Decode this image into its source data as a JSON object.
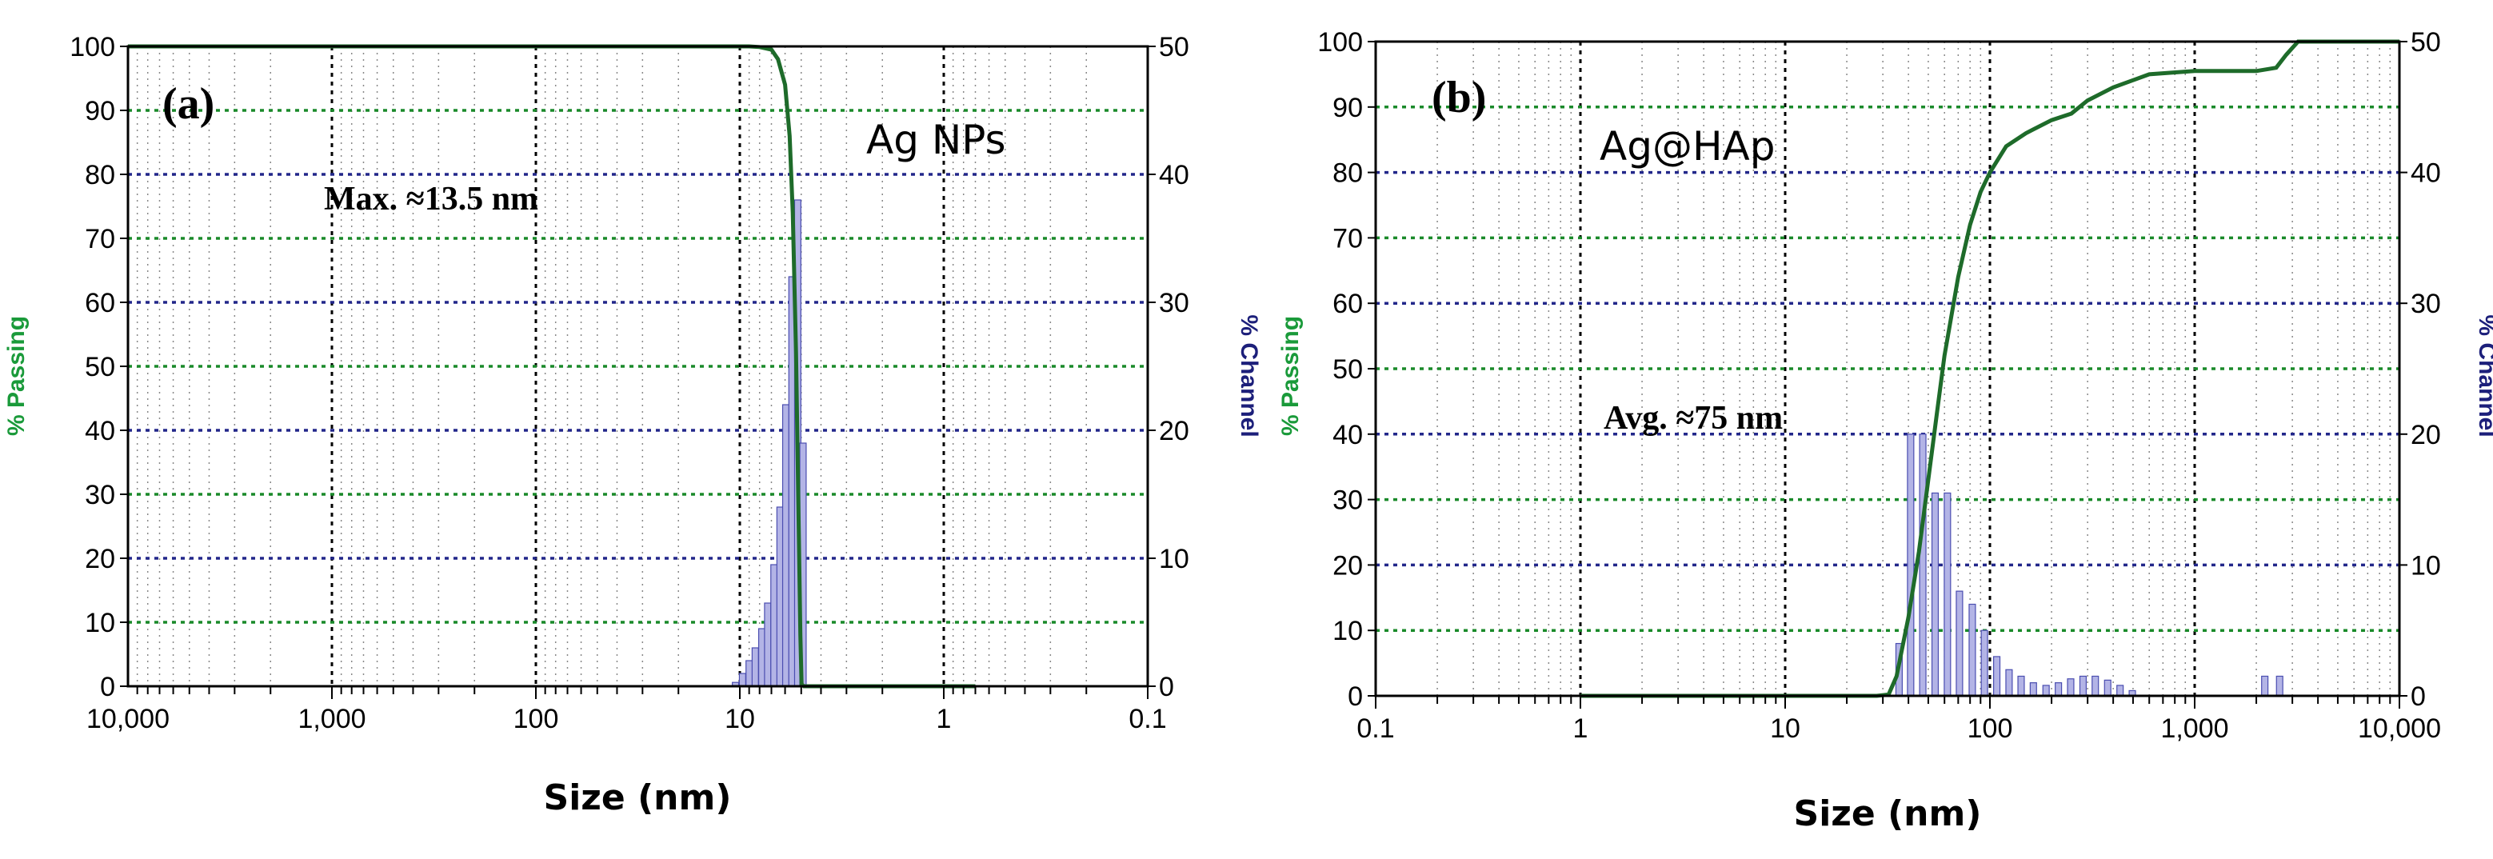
{
  "colors": {
    "passing": "#1a9a3a",
    "passing_line": "#1e6b2a",
    "channel": "#1c1f7a",
    "bars_fill": "#b3b4e6",
    "bars_stroke": "#4a4db0",
    "grid_black": "#000000",
    "grid_green": "#1a8a2a",
    "grid_blue": "#22278a"
  },
  "chart_data": [
    {
      "type": "bar",
      "panel_label": "(a)",
      "sample_label": "Ag NPs",
      "annotation": "Max. ≈13.5 nm",
      "xlabel": "Size (nm)",
      "ylabel_left": "% Passing",
      "ylabel_right": "% Channel",
      "x_scale": "log",
      "x_reversed": true,
      "xlim": [
        10000,
        0.1
      ],
      "x_tick_values": [
        10000,
        1000,
        100,
        10,
        1,
        0.1
      ],
      "x_tick_labels": [
        "10,000",
        "1,000",
        "100",
        "10",
        "1",
        "0.1"
      ],
      "ylim_left": [
        0,
        100
      ],
      "ylim_right": [
        0,
        50
      ],
      "y_left_ticks": [
        "0",
        "10",
        "20",
        "30",
        "40",
        "50",
        "60",
        "70",
        "80",
        "90",
        "100"
      ],
      "y_right_ticks": [
        "0",
        "10",
        "20",
        "30",
        "40",
        "50"
      ],
      "series": [
        {
          "name": "% Passing",
          "type": "line",
          "x": [
            10000,
            20,
            9,
            8,
            7,
            6.5,
            6,
            5.7,
            5.5,
            5.3,
            5.15,
            5.05,
            4.98,
            4.85,
            0.7
          ],
          "y": [
            100,
            100,
            100,
            99.9,
            99.5,
            98,
            94,
            86,
            74,
            52,
            26,
            8,
            0.3,
            0,
            0
          ]
        },
        {
          "name": "% Channel",
          "type": "bar",
          "x": [
            10.5,
            9.7,
            9.0,
            8.4,
            7.8,
            7.3,
            6.8,
            6.35,
            5.95,
            5.55,
            5.2,
            4.9
          ],
          "values": [
            0.3,
            1,
            2,
            3,
            4.5,
            6.5,
            9.5,
            14,
            22,
            32,
            38,
            19
          ]
        }
      ]
    },
    {
      "type": "bar",
      "panel_label": "(b)",
      "sample_label": "Ag@HAp",
      "annotation": "Avg. ≈75 nm",
      "xlabel": "Size (nm)",
      "ylabel_left": "% Passing",
      "ylabel_right": "% Channel",
      "x_scale": "log",
      "x_reversed": false,
      "xlim": [
        0.1,
        10000
      ],
      "x_tick_values": [
        0.1,
        1,
        10,
        100,
        1000,
        10000
      ],
      "x_tick_labels": [
        "0.1",
        "1",
        "10",
        "100",
        "1,000",
        "10,000"
      ],
      "ylim_left": [
        0,
        100
      ],
      "ylim_right": [
        0,
        50
      ],
      "y_left_ticks": [
        "0",
        "10",
        "20",
        "30",
        "40",
        "50",
        "60",
        "70",
        "80",
        "90",
        "100"
      ],
      "y_right_ticks": [
        "0",
        "10",
        "20",
        "30",
        "40",
        "50"
      ],
      "series": [
        {
          "name": "% Passing",
          "type": "line",
          "x": [
            1,
            28,
            32,
            35,
            40,
            45,
            50,
            55,
            60,
            70,
            80,
            90,
            100,
            120,
            150,
            200,
            250,
            300,
            400,
            600,
            1000,
            2000,
            2500,
            2800,
            3200,
            10000
          ],
          "y": [
            0,
            0,
            0.2,
            3,
            12,
            22,
            33,
            43,
            52,
            64,
            72,
            77,
            80,
            84,
            86,
            88,
            89,
            91,
            93,
            95,
            95.5,
            95.5,
            96,
            98,
            100,
            100
          ]
        },
        {
          "name": "% Channel",
          "type": "bar",
          "x": [
            36,
            41,
            47,
            54,
            62,
            71,
            82,
            94,
            108,
            124,
            142,
            163,
            188,
            216,
            248,
            285,
            327,
            376,
            432,
            496,
            2200,
            2600
          ],
          "values": [
            4,
            20,
            20,
            15.5,
            15.5,
            8,
            7,
            5,
            3,
            2,
            1.5,
            1,
            0.8,
            1,
            1.3,
            1.5,
            1.5,
            1.2,
            0.8,
            0.4,
            1.5,
            1.5
          ]
        }
      ]
    }
  ]
}
